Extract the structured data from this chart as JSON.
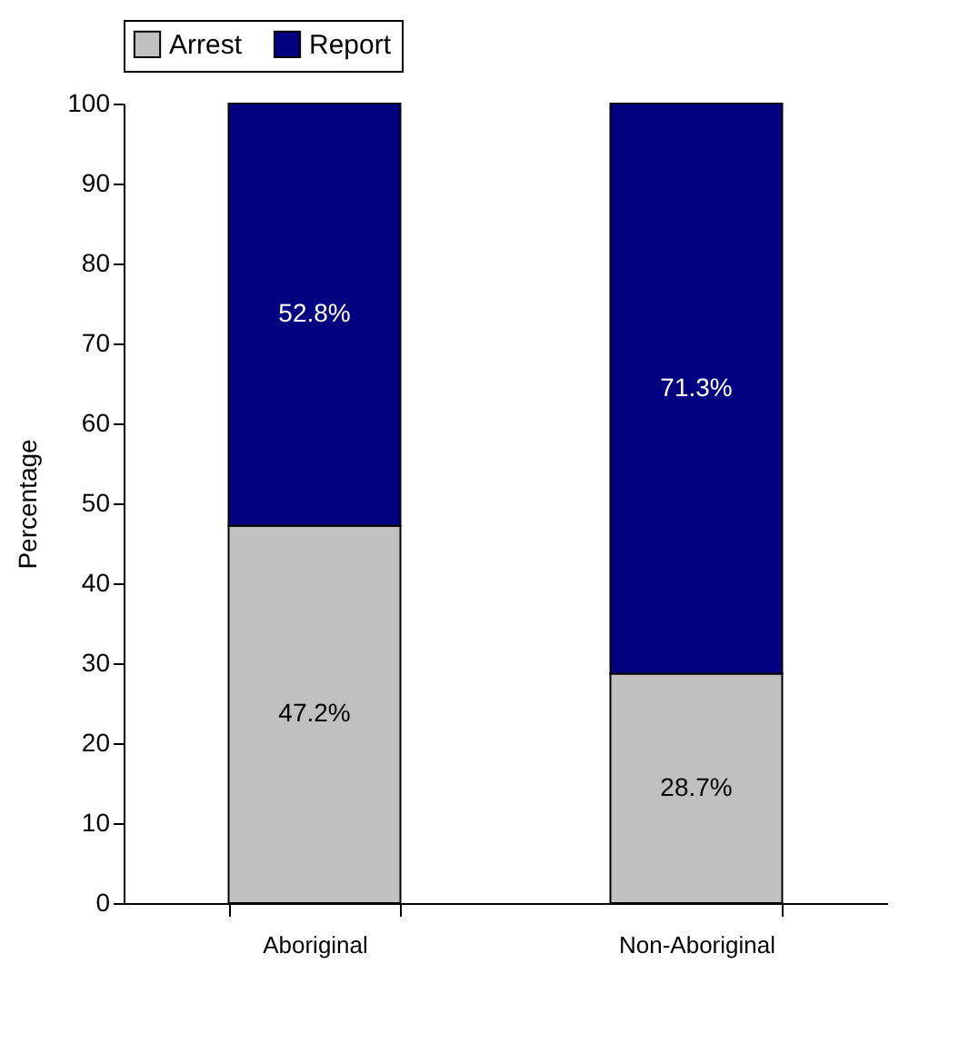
{
  "chart_data": {
    "type": "bar",
    "stacked": true,
    "ylabel": "Percentage",
    "categories": [
      "Aboriginal",
      "Non-Aboriginal"
    ],
    "series": [
      {
        "name": "Arrest",
        "color": "#c0c0c0",
        "values": [
          47.2,
          28.7
        ],
        "value_labels": [
          "47.2%",
          "28.7%"
        ]
      },
      {
        "name": "Report",
        "color": "#000080",
        "values": [
          52.8,
          71.3
        ],
        "value_labels": [
          "52.8%",
          "71.3%"
        ]
      }
    ],
    "ylim": [
      0,
      100
    ],
    "yticks": [
      0,
      10,
      20,
      30,
      40,
      50,
      60,
      70,
      80,
      90,
      100
    ],
    "grid": false,
    "legend": "top"
  }
}
